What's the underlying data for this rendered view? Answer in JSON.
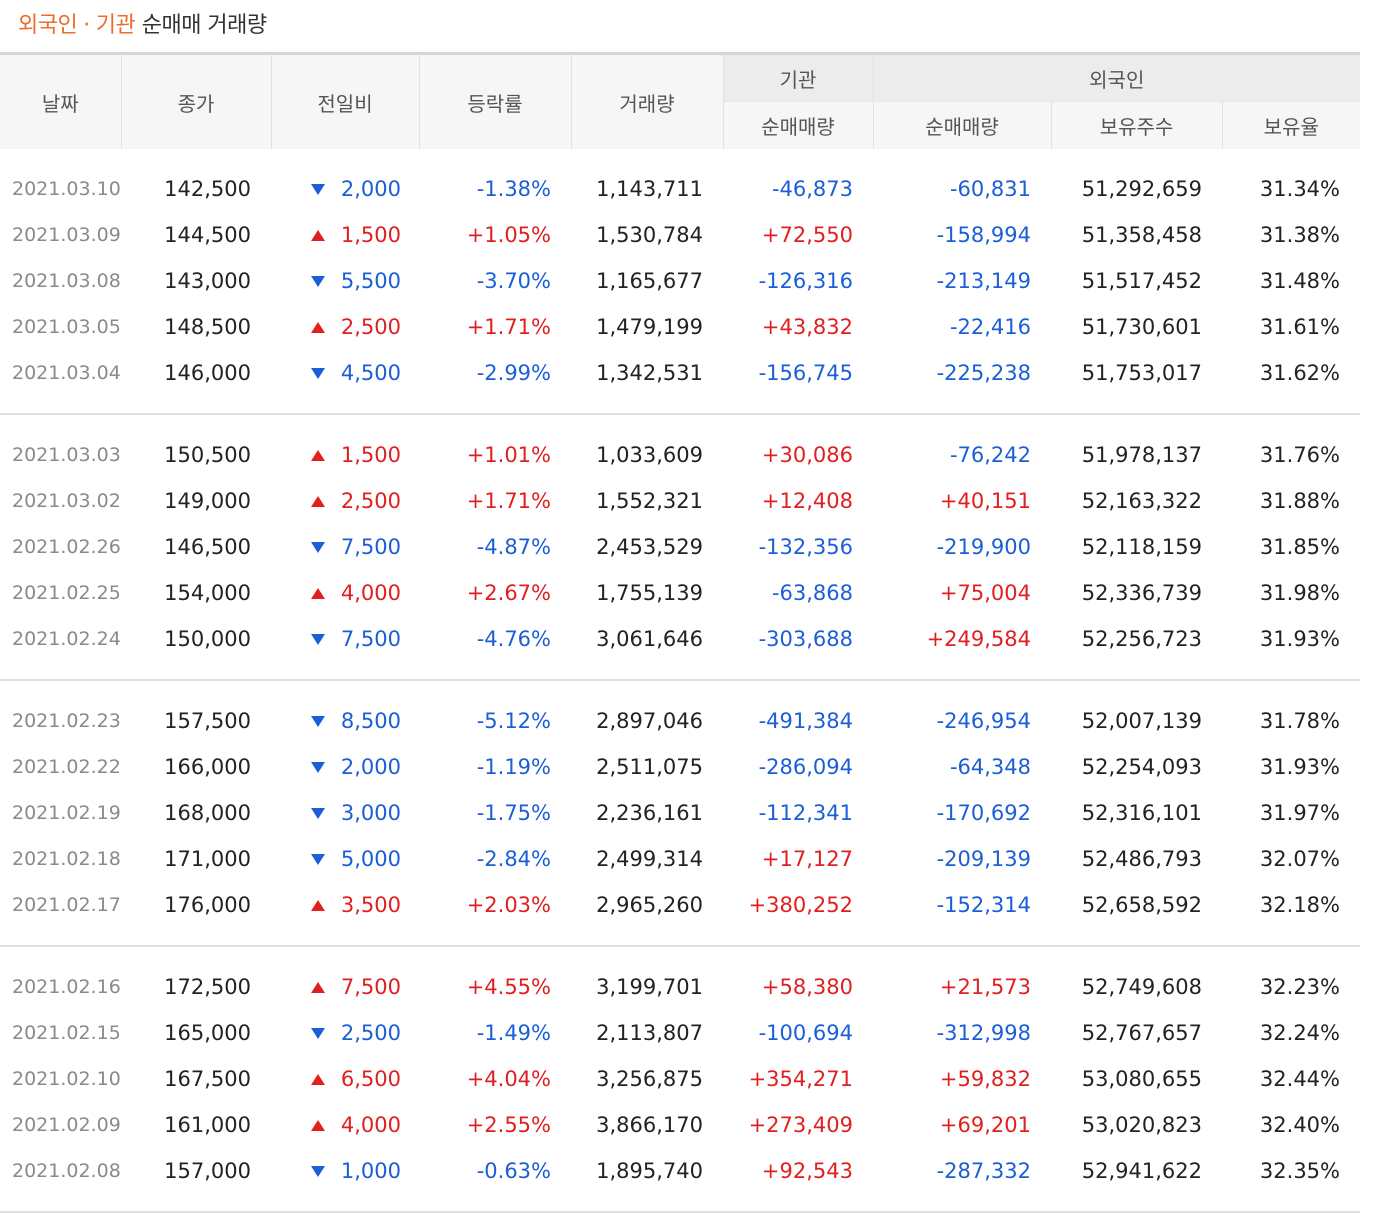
{
  "title": {
    "part1": "외국인",
    "sep": "·",
    "part2": "기관",
    "rest": "순매매 거래량"
  },
  "headers": {
    "date": "날짜",
    "close": "종가",
    "change": "전일비",
    "rate": "등락률",
    "volume": "거래량",
    "inst_group": "기관",
    "inst_net": "순매매량",
    "foreign_group": "외국인",
    "foreign_net": "순매매량",
    "holdings": "보유주수",
    "ratio": "보유율"
  },
  "colors": {
    "up": "#e02020",
    "down": "#1a5ed8",
    "accent": "#f06a2a"
  },
  "rows": [
    {
      "date": "2021.03.10",
      "close": "142,500",
      "dir": "down",
      "change": "2,000",
      "rate": "-1.38%",
      "volume": "1,143,711",
      "inst": "-46,873",
      "foreign": "-60,831",
      "holdings": "51,292,659",
      "ratio": "31.34%"
    },
    {
      "date": "2021.03.09",
      "close": "144,500",
      "dir": "up",
      "change": "1,500",
      "rate": "+1.05%",
      "volume": "1,530,784",
      "inst": "+72,550",
      "foreign": "-158,994",
      "holdings": "51,358,458",
      "ratio": "31.38%"
    },
    {
      "date": "2021.03.08",
      "close": "143,000",
      "dir": "down",
      "change": "5,500",
      "rate": "-3.70%",
      "volume": "1,165,677",
      "inst": "-126,316",
      "foreign": "-213,149",
      "holdings": "51,517,452",
      "ratio": "31.48%"
    },
    {
      "date": "2021.03.05",
      "close": "148,500",
      "dir": "up",
      "change": "2,500",
      "rate": "+1.71%",
      "volume": "1,479,199",
      "inst": "+43,832",
      "foreign": "-22,416",
      "holdings": "51,730,601",
      "ratio": "31.61%"
    },
    {
      "date": "2021.03.04",
      "close": "146,000",
      "dir": "down",
      "change": "4,500",
      "rate": "-2.99%",
      "volume": "1,342,531",
      "inst": "-156,745",
      "foreign": "-225,238",
      "holdings": "51,753,017",
      "ratio": "31.62%"
    },
    {
      "date": "2021.03.03",
      "close": "150,500",
      "dir": "up",
      "change": "1,500",
      "rate": "+1.01%",
      "volume": "1,033,609",
      "inst": "+30,086",
      "foreign": "-76,242",
      "holdings": "51,978,137",
      "ratio": "31.76%"
    },
    {
      "date": "2021.03.02",
      "close": "149,000",
      "dir": "up",
      "change": "2,500",
      "rate": "+1.71%",
      "volume": "1,552,321",
      "inst": "+12,408",
      "foreign": "+40,151",
      "holdings": "52,163,322",
      "ratio": "31.88%"
    },
    {
      "date": "2021.02.26",
      "close": "146,500",
      "dir": "down",
      "change": "7,500",
      "rate": "-4.87%",
      "volume": "2,453,529",
      "inst": "-132,356",
      "foreign": "-219,900",
      "holdings": "52,118,159",
      "ratio": "31.85%"
    },
    {
      "date": "2021.02.25",
      "close": "154,000",
      "dir": "up",
      "change": "4,000",
      "rate": "+2.67%",
      "volume": "1,755,139",
      "inst": "-63,868",
      "foreign": "+75,004",
      "holdings": "52,336,739",
      "ratio": "31.98%"
    },
    {
      "date": "2021.02.24",
      "close": "150,000",
      "dir": "down",
      "change": "7,500",
      "rate": "-4.76%",
      "volume": "3,061,646",
      "inst": "-303,688",
      "foreign": "+249,584",
      "holdings": "52,256,723",
      "ratio": "31.93%"
    },
    {
      "date": "2021.02.23",
      "close": "157,500",
      "dir": "down",
      "change": "8,500",
      "rate": "-5.12%",
      "volume": "2,897,046",
      "inst": "-491,384",
      "foreign": "-246,954",
      "holdings": "52,007,139",
      "ratio": "31.78%"
    },
    {
      "date": "2021.02.22",
      "close": "166,000",
      "dir": "down",
      "change": "2,000",
      "rate": "-1.19%",
      "volume": "2,511,075",
      "inst": "-286,094",
      "foreign": "-64,348",
      "holdings": "52,254,093",
      "ratio": "31.93%"
    },
    {
      "date": "2021.02.19",
      "close": "168,000",
      "dir": "down",
      "change": "3,000",
      "rate": "-1.75%",
      "volume": "2,236,161",
      "inst": "-112,341",
      "foreign": "-170,692",
      "holdings": "52,316,101",
      "ratio": "31.97%"
    },
    {
      "date": "2021.02.18",
      "close": "171,000",
      "dir": "down",
      "change": "5,000",
      "rate": "-2.84%",
      "volume": "2,499,314",
      "inst": "+17,127",
      "foreign": "-209,139",
      "holdings": "52,486,793",
      "ratio": "32.07%"
    },
    {
      "date": "2021.02.17",
      "close": "176,000",
      "dir": "up",
      "change": "3,500",
      "rate": "+2.03%",
      "volume": "2,965,260",
      "inst": "+380,252",
      "foreign": "-152,314",
      "holdings": "52,658,592",
      "ratio": "32.18%"
    },
    {
      "date": "2021.02.16",
      "close": "172,500",
      "dir": "up",
      "change": "7,500",
      "rate": "+4.55%",
      "volume": "3,199,701",
      "inst": "+58,380",
      "foreign": "+21,573",
      "holdings": "52,749,608",
      "ratio": "32.23%"
    },
    {
      "date": "2021.02.15",
      "close": "165,000",
      "dir": "down",
      "change": "2,500",
      "rate": "-1.49%",
      "volume": "2,113,807",
      "inst": "-100,694",
      "foreign": "-312,998",
      "holdings": "52,767,657",
      "ratio": "32.24%"
    },
    {
      "date": "2021.02.10",
      "close": "167,500",
      "dir": "up",
      "change": "6,500",
      "rate": "+4.04%",
      "volume": "3,256,875",
      "inst": "+354,271",
      "foreign": "+59,832",
      "holdings": "53,080,655",
      "ratio": "32.44%"
    },
    {
      "date": "2021.02.09",
      "close": "161,000",
      "dir": "up",
      "change": "4,000",
      "rate": "+2.55%",
      "volume": "3,866,170",
      "inst": "+273,409",
      "foreign": "+69,201",
      "holdings": "53,020,823",
      "ratio": "32.40%"
    },
    {
      "date": "2021.02.08",
      "close": "157,000",
      "dir": "down",
      "change": "1,000",
      "rate": "-0.63%",
      "volume": "1,895,740",
      "inst": "+92,543",
      "foreign": "-287,332",
      "holdings": "52,941,622",
      "ratio": "32.35%"
    }
  ]
}
